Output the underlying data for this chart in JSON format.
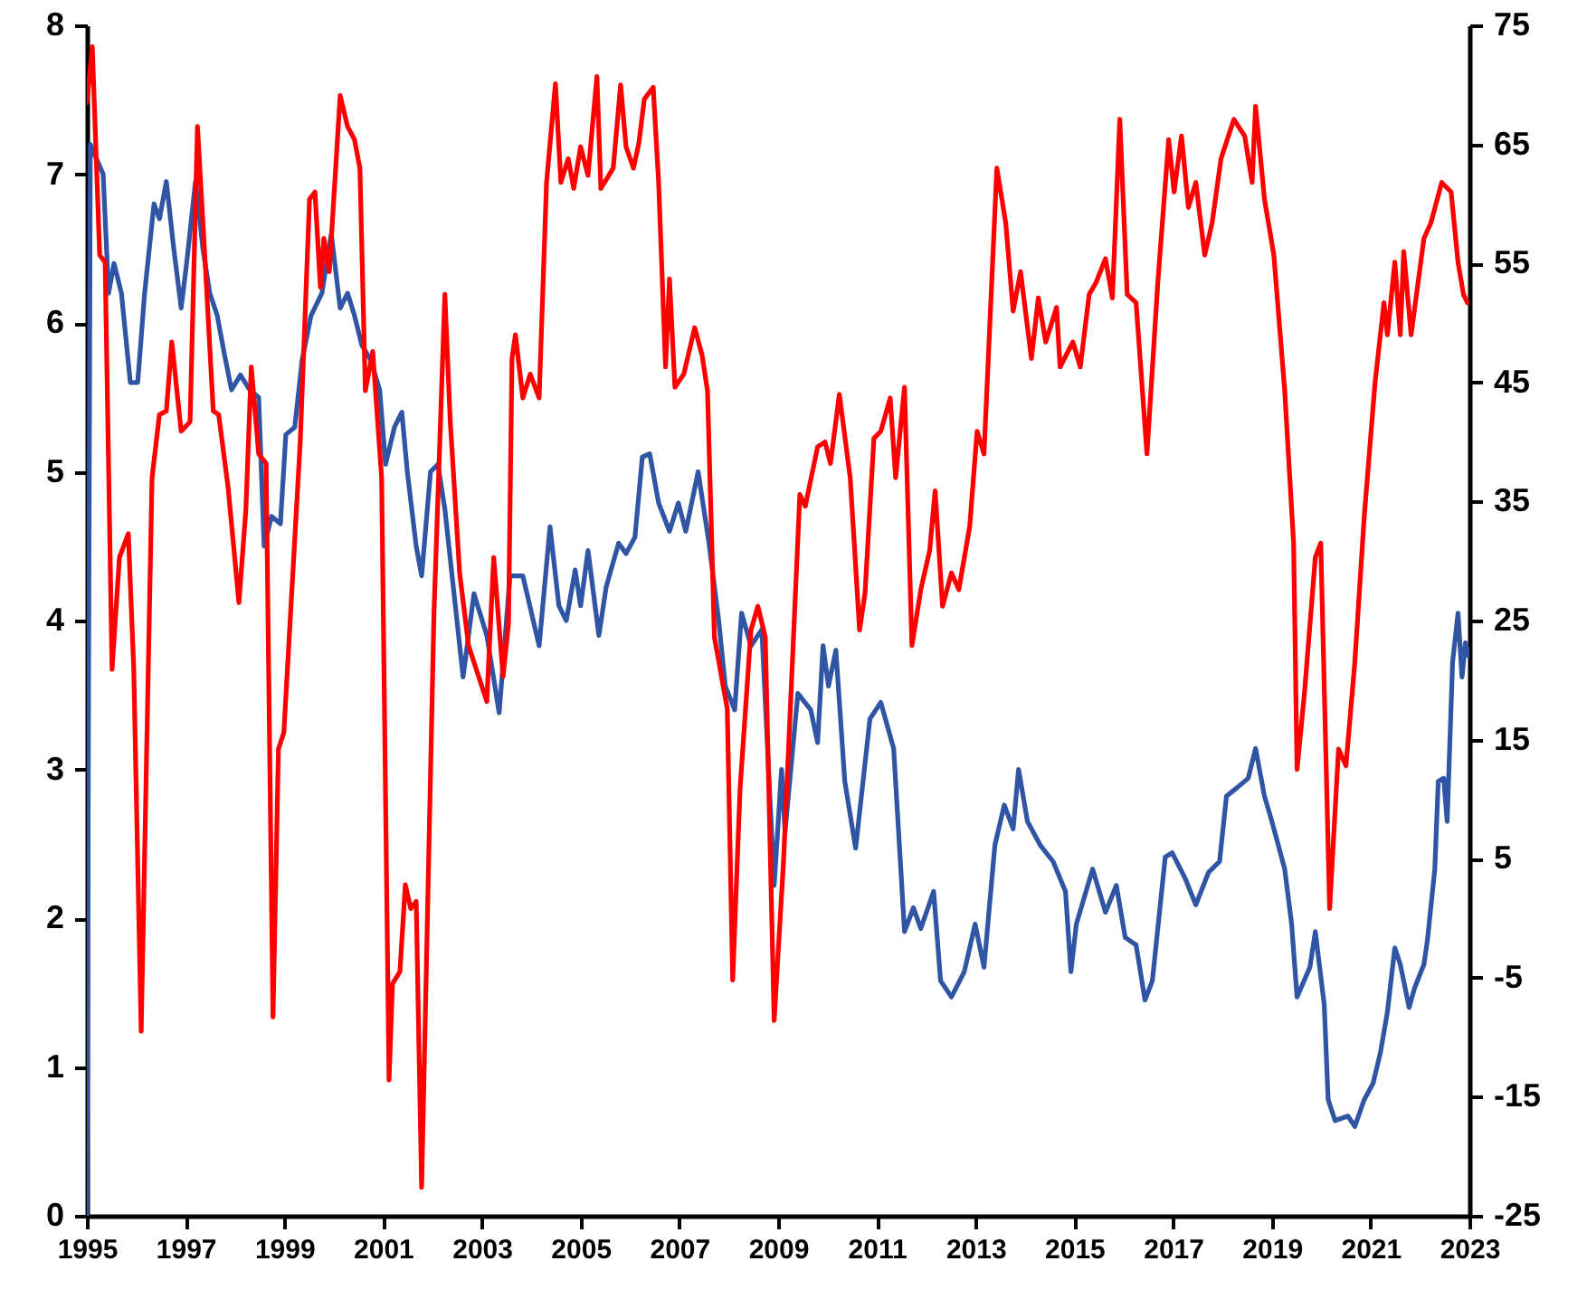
{
  "chart_data": {
    "type": "line",
    "xlim": [
      1995,
      2023
    ],
    "xticks": [
      1995,
      1997,
      1999,
      2001,
      2003,
      2005,
      2007,
      2009,
      2011,
      2013,
      2015,
      2017,
      2019,
      2021,
      2023
    ],
    "ylim": [
      0,
      8
    ],
    "yticks": [
      0,
      1,
      2,
      3,
      4,
      5,
      6,
      7,
      8
    ],
    "y2lim": [
      -25,
      75
    ],
    "y2ticks": [
      -25,
      -15,
      -5,
      5,
      15,
      25,
      35,
      45,
      55,
      65,
      75
    ],
    "series": [
      {
        "color": "#2f55a4",
        "axis": "y",
        "x": [
          1995.0,
          1995.07,
          1995.33,
          1995.44,
          1995.55,
          1995.7,
          1995.88,
          1996.03,
          1996.17,
          1996.36,
          1996.47,
          1996.61,
          1996.76,
          1996.91,
          1997.02,
          1997.2,
          1997.35,
          1997.49,
          1997.64,
          1997.78,
          1997.93,
          1998.11,
          1998.3,
          1998.48,
          1998.59,
          1998.74,
          1998.92,
          1999.03,
          1999.21,
          1999.36,
          1999.54,
          1999.76,
          1999.95,
          2000.13,
          2000.28,
          2000.42,
          2000.57,
          2000.75,
          2000.93,
          2001.05,
          2001.23,
          2001.38,
          2001.49,
          2001.67,
          2001.78,
          2001.96,
          2002.11,
          2002.25,
          2002.62,
          2002.84,
          2003.1,
          2003.35,
          2003.57,
          2003.83,
          2004.16,
          2004.38,
          2004.56,
          2004.71,
          2004.89,
          2005.0,
          2005.15,
          2005.37,
          2005.52,
          2005.77,
          2005.92,
          2006.1,
          2006.25,
          2006.4,
          2006.58,
          2006.8,
          2006.98,
          2007.13,
          2007.38,
          2007.6,
          2007.79,
          2007.93,
          2008.12,
          2008.26,
          2008.45,
          2008.67,
          2008.92,
          2009.07,
          2009.14,
          2009.4,
          2009.66,
          2009.8,
          2009.91,
          2010.02,
          2010.17,
          2010.35,
          2010.57,
          2010.86,
          2011.08,
          2011.34,
          2011.56,
          2011.74,
          2011.89,
          2012.15,
          2012.29,
          2012.51,
          2012.77,
          2012.99,
          2013.17,
          2013.39,
          2013.58,
          2013.76,
          2013.87,
          2014.05,
          2014.31,
          2014.57,
          2014.82,
          2014.93,
          2015.04,
          2015.37,
          2015.63,
          2015.85,
          2016.03,
          2016.25,
          2016.43,
          2016.58,
          2016.84,
          2016.98,
          2017.24,
          2017.46,
          2017.72,
          2017.94,
          2018.08,
          2018.27,
          2018.52,
          2018.67,
          2018.85,
          2019.0,
          2019.26,
          2019.4,
          2019.51,
          2019.77,
          2019.88,
          2020.06,
          2020.14,
          2020.28,
          2020.54,
          2020.68,
          2020.87,
          2021.05,
          2021.2,
          2021.34,
          2021.49,
          2021.6,
          2021.78,
          2021.89,
          2022.08,
          2022.15,
          2022.3,
          2022.37,
          2022.48,
          2022.55,
          2022.66,
          2022.77,
          2022.85,
          2022.92,
          2022.99
        ],
        "values": [
          0,
          7.2,
          7.0,
          6.2,
          6.4,
          6.2,
          5.6,
          5.6,
          6.2,
          6.8,
          6.7,
          6.95,
          6.5,
          6.1,
          6.4,
          6.95,
          6.5,
          6.2,
          6.05,
          5.8,
          5.55,
          5.65,
          5.55,
          5.5,
          4.5,
          4.7,
          4.65,
          5.25,
          5.3,
          5.75,
          6.05,
          6.2,
          6.6,
          6.1,
          6.2,
          6.05,
          5.85,
          5.75,
          5.55,
          5.05,
          5.3,
          5.4,
          5.0,
          4.5,
          4.3,
          5.0,
          5.05,
          4.75,
          3.62,
          4.18,
          3.9,
          3.38,
          4.3,
          4.3,
          3.83,
          4.63,
          4.1,
          4.0,
          4.34,
          4.1,
          4.47,
          3.9,
          4.23,
          4.52,
          4.45,
          4.56,
          5.1,
          5.12,
          4.79,
          4.6,
          4.79,
          4.6,
          5.0,
          4.52,
          4.02,
          3.56,
          3.4,
          4.05,
          3.83,
          3.94,
          2.22,
          3.0,
          2.58,
          3.51,
          3.4,
          3.18,
          3.83,
          3.56,
          3.8,
          2.92,
          2.47,
          3.34,
          3.45,
          3.14,
          1.91,
          2.07,
          1.93,
          2.18,
          1.58,
          1.47,
          1.64,
          1.96,
          1.67,
          2.49,
          2.76,
          2.6,
          3.0,
          2.65,
          2.49,
          2.38,
          2.18,
          1.64,
          1.96,
          2.33,
          2.04,
          2.22,
          1.87,
          1.82,
          1.45,
          1.58,
          2.41,
          2.44,
          2.27,
          2.09,
          2.31,
          2.38,
          2.82,
          2.87,
          2.94,
          3.14,
          2.82,
          2.65,
          2.33,
          1.96,
          1.47,
          1.67,
          1.91,
          1.42,
          0.78,
          0.64,
          0.67,
          0.6,
          0.78,
          0.89,
          1.1,
          1.37,
          1.8,
          1.69,
          1.4,
          1.53,
          1.69,
          1.85,
          2.33,
          2.92,
          2.94,
          2.65,
          3.72,
          4.05,
          3.62,
          3.85,
          3.76
        ]
      },
      {
        "color": "#ff0000",
        "axis": "y2",
        "x": [
          1995.0,
          1995.11,
          1995.26,
          1995.37,
          1995.51,
          1995.66,
          1995.84,
          1995.95,
          1996.1,
          1996.32,
          1996.47,
          1996.61,
          1996.72,
          1996.91,
          1997.09,
          1997.24,
          1997.38,
          1997.56,
          1997.67,
          1997.86,
          1998.08,
          1998.22,
          1998.33,
          1998.48,
          1998.63,
          1998.77,
          1998.88,
          1998.99,
          1999.32,
          1999.51,
          1999.62,
          1999.73,
          1999.8,
          1999.91,
          2000.13,
          2000.28,
          2000.42,
          2000.53,
          2000.64,
          2000.79,
          2000.97,
          2001.12,
          2001.19,
          2001.34,
          2001.45,
          2001.56,
          2001.67,
          2001.78,
          2002.03,
          2002.25,
          2002.36,
          2002.55,
          2002.73,
          2002.84,
          2003.1,
          2003.24,
          2003.43,
          2003.54,
          2003.61,
          2003.68,
          2003.83,
          2003.98,
          2004.16,
          2004.31,
          2004.49,
          2004.6,
          2004.75,
          2004.86,
          2005.0,
          2005.15,
          2005.33,
          2005.41,
          2005.66,
          2005.81,
          2005.92,
          2006.07,
          2006.18,
          2006.29,
          2006.47,
          2006.58,
          2006.72,
          2006.8,
          2006.91,
          2007.09,
          2007.31,
          2007.46,
          2007.57,
          2007.71,
          2007.97,
          2008.08,
          2008.23,
          2008.45,
          2008.59,
          2008.74,
          2008.92,
          2009.11,
          2009.44,
          2009.55,
          2009.8,
          2009.95,
          2010.06,
          2010.24,
          2010.46,
          2010.65,
          2010.76,
          2010.94,
          2011.08,
          2011.27,
          2011.38,
          2011.56,
          2011.71,
          2011.89,
          2012.07,
          2012.18,
          2012.33,
          2012.51,
          2012.66,
          2012.88,
          2013.03,
          2013.17,
          2013.43,
          2013.61,
          2013.76,
          2013.91,
          2014.13,
          2014.27,
          2014.42,
          2014.64,
          2014.71,
          2014.97,
          2015.12,
          2015.3,
          2015.44,
          2015.63,
          2015.77,
          2015.92,
          2016.07,
          2016.25,
          2016.47,
          2016.69,
          2016.91,
          2017.02,
          2017.17,
          2017.31,
          2017.46,
          2017.64,
          2017.79,
          2017.97,
          2018.23,
          2018.45,
          2018.6,
          2018.67,
          2018.85,
          2019.04,
          2019.26,
          2019.44,
          2019.51,
          2019.66,
          2019.88,
          2019.99,
          2020.17,
          2020.35,
          2020.5,
          2020.68,
          2020.87,
          2021.09,
          2021.27,
          2021.34,
          2021.49,
          2021.6,
          2021.67,
          2021.82,
          2022.08,
          2022.22,
          2022.44,
          2022.63,
          2022.77,
          2022.88,
          2022.96
        ],
        "values": [
          68.5,
          73.2,
          55.7,
          55.1,
          20.9,
          30.3,
          32.3,
          20.9,
          -9.5,
          37.0,
          42.3,
          42.6,
          48.4,
          40.9,
          41.7,
          66.5,
          56.3,
          42.6,
          42.3,
          36.2,
          26.5,
          34.3,
          46.3,
          39.0,
          38.2,
          -8.3,
          14.2,
          15.6,
          39.9,
          60.4,
          61.0,
          53.0,
          57.1,
          54.3,
          69.1,
          66.5,
          65.4,
          63.0,
          44.3,
          47.6,
          37.0,
          -13.6,
          -5.5,
          -4.5,
          2.8,
          0.8,
          1.4,
          -22.6,
          25.6,
          52.4,
          41.7,
          29.0,
          22.9,
          21.5,
          18.2,
          30.3,
          20.3,
          24.8,
          47.0,
          49.0,
          43.7,
          45.7,
          43.7,
          61.8,
          70.1,
          61.8,
          63.8,
          61.3,
          64.8,
          62.4,
          70.7,
          61.3,
          63.0,
          70.0,
          64.8,
          63.0,
          65.1,
          68.8,
          69.8,
          61.8,
          46.3,
          53.7,
          44.6,
          45.7,
          49.6,
          47.3,
          44.3,
          23.6,
          17.6,
          -5.2,
          10.9,
          24.2,
          26.2,
          23.6,
          -8.6,
          4.8,
          35.6,
          34.6,
          39.6,
          40.0,
          38.2,
          44.0,
          37.0,
          24.2,
          27.3,
          40.3,
          40.9,
          43.7,
          37.0,
          44.6,
          22.9,
          27.6,
          30.9,
          35.9,
          26.2,
          29.0,
          27.6,
          32.9,
          40.9,
          39.0,
          63.0,
          58.4,
          51.0,
          54.3,
          47.0,
          52.1,
          48.4,
          51.3,
          46.3,
          48.4,
          46.3,
          52.4,
          53.4,
          55.4,
          52.1,
          67.1,
          52.4,
          51.7,
          39.0,
          53.4,
          65.4,
          61.0,
          65.7,
          59.7,
          61.8,
          55.7,
          58.4,
          63.8,
          67.1,
          65.7,
          61.8,
          68.2,
          60.4,
          55.7,
          44.3,
          31.5,
          12.5,
          18.9,
          30.3,
          31.5,
          0.8,
          14.2,
          12.8,
          21.5,
          33.7,
          45.0,
          51.7,
          49.0,
          55.1,
          49.0,
          56.0,
          49.0,
          57.1,
          58.4,
          61.8,
          61.0,
          55.1,
          52.4,
          51.7
        ]
      }
    ]
  }
}
